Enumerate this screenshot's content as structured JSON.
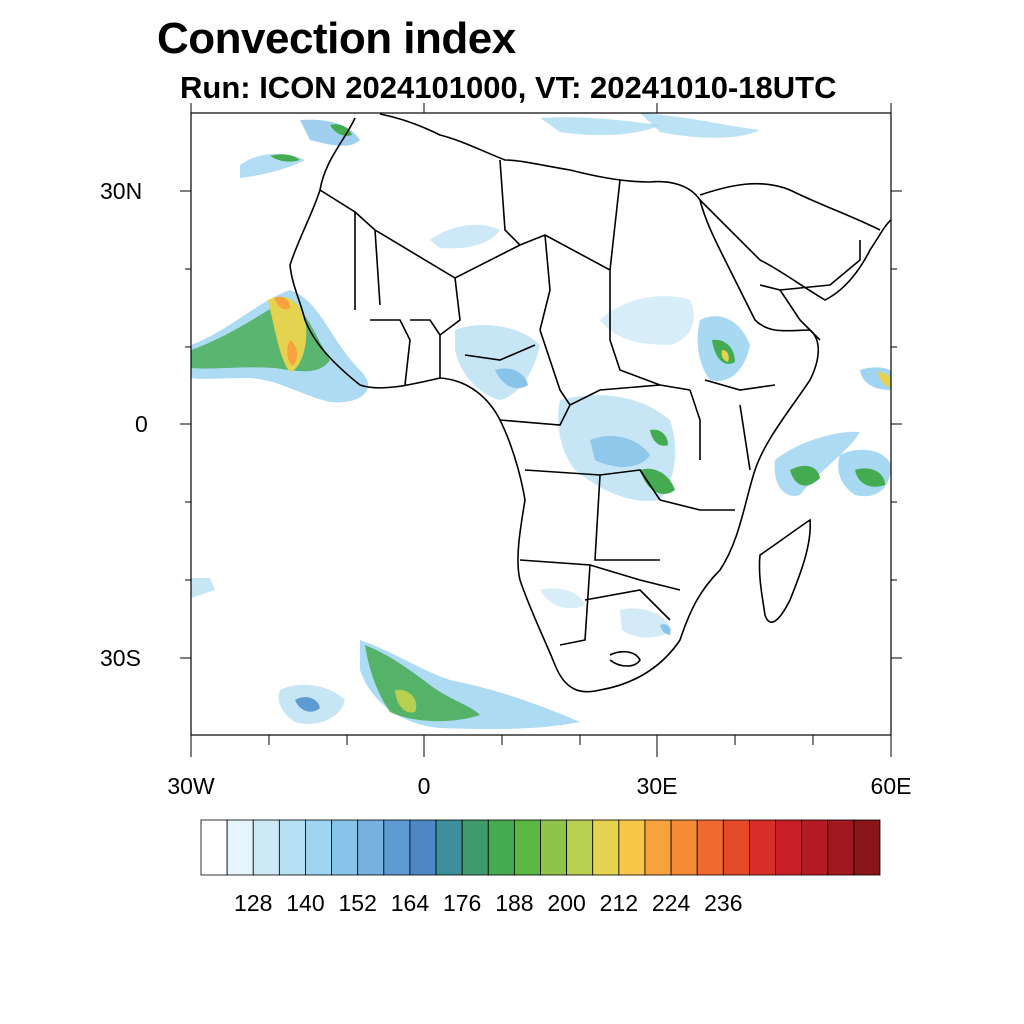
{
  "title": "Convection index",
  "subtitle": "Run: ICON 2024101000,  VT: 20241010-18UTC",
  "map": {
    "region": "Africa",
    "lon_range": [
      -30,
      60
    ],
    "lat_range": [
      -40,
      40
    ],
    "lat_labels": [
      "30N",
      "0",
      "30S"
    ],
    "lon_labels": [
      "30W",
      "0",
      "30E",
      "60E"
    ]
  },
  "colorbar": {
    "labels": [
      "128",
      "140",
      "152",
      "164",
      "176",
      "188",
      "200",
      "212",
      "224",
      "236"
    ],
    "colors": [
      "#ffffff",
      "#e6f4fb",
      "#cde9f6",
      "#b8e0f4",
      "#9fd5f2",
      "#88c4ea",
      "#77b1e2",
      "#5e9bd3",
      "#4d87c4",
      "#3e8f9c",
      "#3f9b6e",
      "#45ab50",
      "#5bb744",
      "#8fc44a",
      "#b8cf4f",
      "#e5d34f",
      "#f7c648",
      "#f6a33e",
      "#f48a34",
      "#ef6a2c",
      "#e44a27",
      "#d92d27",
      "#c81f27",
      "#b51a24",
      "#a1181f",
      "#8a1519"
    ]
  }
}
